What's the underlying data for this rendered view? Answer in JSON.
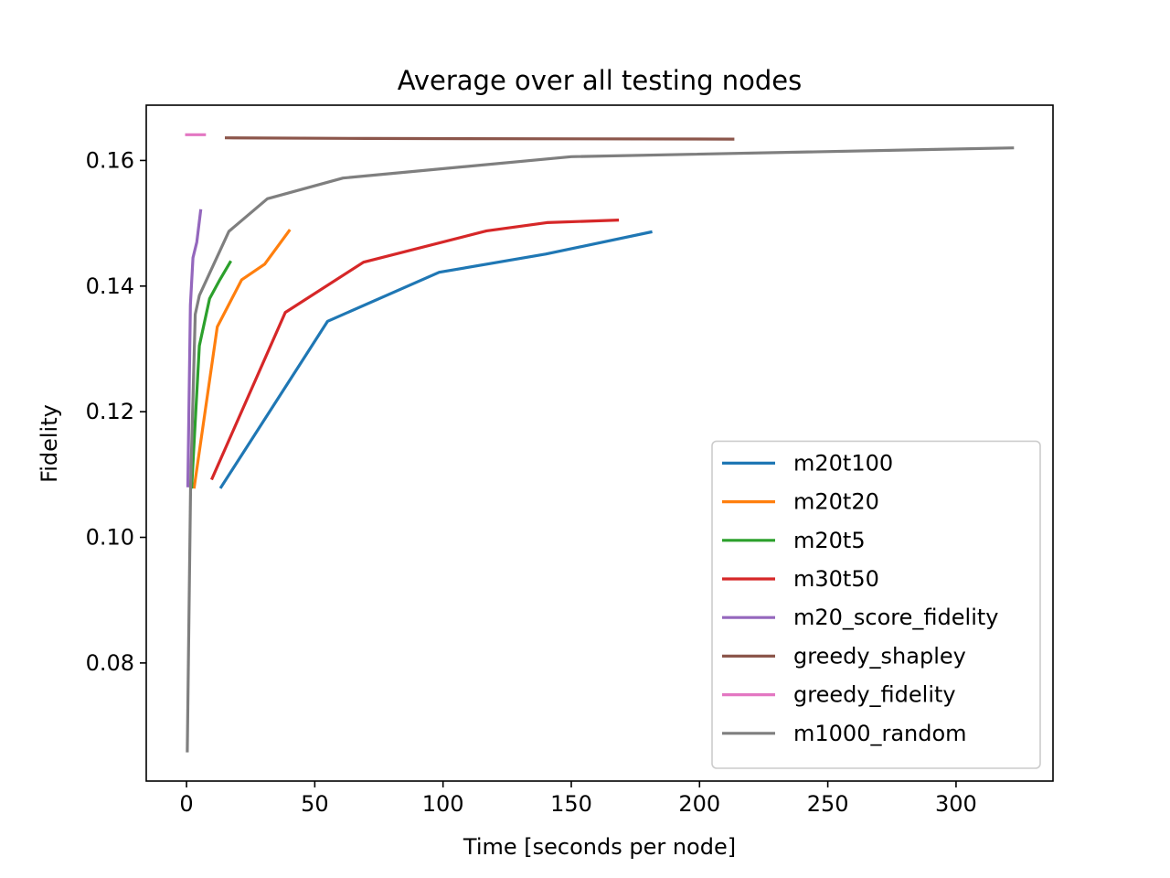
{
  "chart_data": {
    "type": "line",
    "title": "Average over all testing nodes",
    "xlabel": "Time [seconds per node]",
    "ylabel": "Fidelity",
    "xlim": [
      -15.7,
      337.8
    ],
    "ylim": [
      0.0612,
      0.1688
    ],
    "xticks": [
      0,
      50,
      100,
      150,
      200,
      250,
      300
    ],
    "yticks": [
      0.08,
      0.1,
      0.12,
      0.14,
      0.16
    ],
    "ytick_labels": [
      "0.08",
      "0.10",
      "0.12",
      "0.14",
      "0.16"
    ],
    "grid": false,
    "legend_position": "lower-right",
    "series": [
      {
        "name": "m20t100",
        "color": "#1f77b4",
        "x": [
          13.5,
          55,
          98.5,
          140,
          181
        ],
        "y": [
          0.108,
          0.1344,
          0.1422,
          0.1451,
          0.1486
        ]
      },
      {
        "name": "m20t20",
        "color": "#ff7f0e",
        "x": [
          3,
          12,
          21.5,
          30.5,
          40
        ],
        "y": [
          0.108,
          0.1335,
          0.141,
          0.1435,
          0.1488
        ]
      },
      {
        "name": "m20t5",
        "color": "#2ca02c",
        "x": [
          2,
          5,
          9,
          13,
          17
        ],
        "y": [
          0.108,
          0.1305,
          0.138,
          0.141,
          0.1438
        ]
      },
      {
        "name": "m30t50",
        "color": "#d62728",
        "x": [
          10,
          38.5,
          69,
          117,
          140.5,
          168
        ],
        "y": [
          0.1094,
          0.1358,
          0.1438,
          0.1488,
          0.1501,
          0.1505
        ]
      },
      {
        "name": "m20_score_fidelity",
        "color": "#9467bd",
        "x": [
          0.5,
          1.5,
          2.5,
          4,
          5.5
        ],
        "y": [
          0.1082,
          0.137,
          0.1445,
          0.147,
          0.152
        ]
      },
      {
        "name": "greedy_shapley",
        "color": "#8c564b",
        "x": [
          15.5,
          70,
          213
        ],
        "y": [
          0.1636,
          0.1635,
          0.1634
        ]
      },
      {
        "name": "greedy_fidelity",
        "color": "#e377c2",
        "x": [
          0,
          7
        ],
        "y": [
          0.1641,
          0.1641
        ]
      },
      {
        "name": "m1000_random",
        "color": "#7f7f7f",
        "x": [
          0.3,
          1.6,
          3.4,
          5,
          16.5,
          31.5,
          61,
          150,
          322
        ],
        "y": [
          0.066,
          0.108,
          0.1355,
          0.1385,
          0.1487,
          0.1539,
          0.1572,
          0.1606,
          0.162
        ]
      }
    ]
  }
}
